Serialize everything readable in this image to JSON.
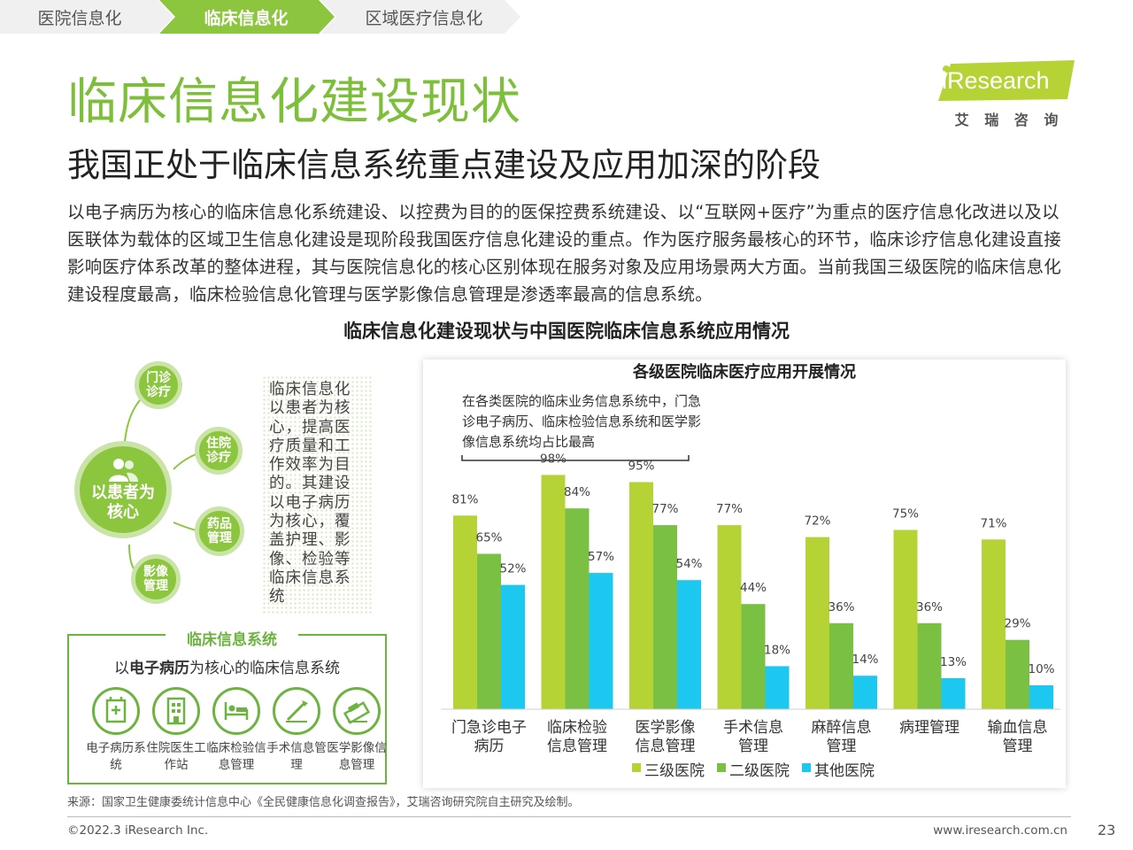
{
  "breadcrumb": {
    "items": [
      "医院信息化",
      "临床信息化",
      "区域医疗信息化"
    ],
    "active_index": 1,
    "active_color": "#8cc63f"
  },
  "logo": {
    "brand": "iResearch",
    "cn": "艾 瑞 咨 询",
    "color": "#b5d334"
  },
  "title": "临床信息化建设现状",
  "subtitle": "我国正处于临床信息系统重点建设及应用加深的阶段",
  "paragraph": "以电子病历为核心的临床信息化系统建设、以控费为目的的医保控费系统建设、以“互联网+医疗”为重点的医疗信息化改进以及以医联体为载体的区域卫生信息化建设是现阶段我国医疗信息化建设的重点。作为医疗服务最核心的环节，临床诊疗信息化建设直接影响医疗体系改革的整体进程，其与医院信息化的核心区别体现在服务对象及应用场景两大方面。当前我国三级医院的临床信息化建设程度最高，临床检验信息化管理与医学影像信息管理是渗透率最高的信息系统。",
  "section_title": "临床信息化建设现状与中国医院临床信息系统应用情况",
  "diagram": {
    "center": "以患者为核心",
    "center_icon": "patient-icon",
    "nodes": [
      "门诊诊疗",
      "住院诊疗",
      "药品管理",
      "影像管理"
    ],
    "description": "临床信息化以患者为核心，提高医疗质量和工作效率为目的。其建设以电子病历为核心，覆盖护理、影像、检验等临床信息系统"
  },
  "system_box": {
    "title": "临床信息系统",
    "subtitle_prefix": "以",
    "subtitle_bold": "电子病历",
    "subtitle_suffix": "为核心的临床信息系统",
    "items": [
      {
        "label": "电子病历系统",
        "icon": "medical-record-icon"
      },
      {
        "label": "住院医生工作站",
        "icon": "hospital-building-icon"
      },
      {
        "label": "临床检验信息管理",
        "icon": "hospital-bed-icon"
      },
      {
        "label": "手术信息管理",
        "icon": "scalpel-icon"
      },
      {
        "label": "医学影像信息管理",
        "icon": "scanner-icon"
      }
    ]
  },
  "chart_data": {
    "type": "bar",
    "title": "各级医院临床医疗应用开展情况",
    "annotation": "在各类医院的临床业务信息系统中，门急诊电子病历、临床检验信息系统和医学影像信息系统均占比最高",
    "categories": [
      "门急诊电子病历",
      "临床检验信息管理",
      "医学影像信息管理",
      "手术信息管理",
      "麻醉信息管理",
      "病理管理",
      "输血信息管理"
    ],
    "series": [
      {
        "name": "三级医院",
        "color": "#b5d334",
        "values": [
          81,
          98,
          95,
          77,
          72,
          75,
          71
        ]
      },
      {
        "name": "二级医院",
        "color": "#7ac143",
        "values": [
          65,
          84,
          77,
          44,
          36,
          36,
          29
        ]
      },
      {
        "name": "其他医院",
        "color": "#1cc7f0",
        "values": [
          52,
          57,
          54,
          18,
          14,
          13,
          10
        ]
      }
    ],
    "value_suffix": "%",
    "ylim": [
      0,
      100
    ],
    "grid": false,
    "legend": "bottom"
  },
  "source": "来源：国家卫生健康委统计信息中心《全民健康信息化调查报告》，艾瑞咨询研究院自主研究及绘制。",
  "footer": {
    "copyright": "©2022.3 iResearch Inc.",
    "website": "www.iresearch.com.cn",
    "page": "23"
  }
}
